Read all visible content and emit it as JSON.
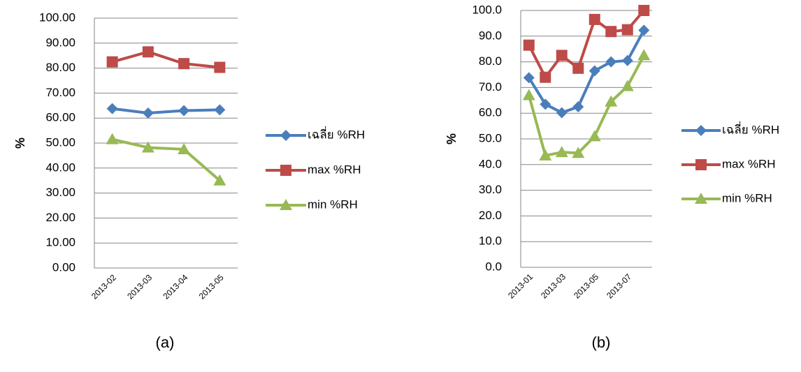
{
  "chart_data": [
    {
      "type": "line",
      "title": "(a)",
      "ylabel": "%",
      "grid": true,
      "categories": [
        "2013-02",
        "2013-03",
        "2013-04",
        "2013-05"
      ],
      "ylim": [
        0,
        100
      ],
      "yticks": [
        {
          "value": 0,
          "label": "0.00"
        },
        {
          "value": 10,
          "label": "10.00"
        },
        {
          "value": 20,
          "label": "20.00"
        },
        {
          "value": 30,
          "label": "30.00"
        },
        {
          "value": 40,
          "label": "40.00"
        },
        {
          "value": 50,
          "label": "50.00"
        },
        {
          "value": 60,
          "label": "60.00"
        },
        {
          "value": 70,
          "label": "70.00"
        },
        {
          "value": 80,
          "label": "80.00"
        },
        {
          "value": 90,
          "label": "90.00"
        },
        {
          "value": 100,
          "label": "100.00"
        }
      ],
      "series": [
        {
          "name": "เฉลี่ย %RH",
          "color": "#4a7ebb",
          "marker": "diamond",
          "values": [
            63.8,
            62.0,
            63.0,
            63.3
          ]
        },
        {
          "name": "max %RH",
          "color": "#be4b48",
          "marker": "square",
          "values": [
            82.5,
            86.5,
            81.8,
            80.3
          ]
        },
        {
          "name": "min %RH",
          "color": "#98b954",
          "marker": "triangle",
          "values": [
            51.5,
            48.2,
            47.5,
            35.0
          ]
        }
      ]
    },
    {
      "type": "line",
      "title": "(b)",
      "ylabel": "%",
      "grid": true,
      "categories": [
        "2013-01",
        null,
        "2013-03",
        null,
        "2013-05",
        null,
        "2013-07",
        null
      ],
      "ylim": [
        0,
        100
      ],
      "yticks": [
        {
          "value": 0,
          "label": "0.0"
        },
        {
          "value": 10,
          "label": "10.0"
        },
        {
          "value": 20,
          "label": "20.0"
        },
        {
          "value": 30,
          "label": "30.0"
        },
        {
          "value": 40,
          "label": "40.0"
        },
        {
          "value": 50,
          "label": "50.0"
        },
        {
          "value": 60,
          "label": "60.0"
        },
        {
          "value": 70,
          "label": "70.0"
        },
        {
          "value": 80,
          "label": "80.0"
        },
        {
          "value": 90,
          "label": "90.0"
        },
        {
          "value": 100,
          "label": "100.0"
        }
      ],
      "series": [
        {
          "name": "เฉลี่ย %RH",
          "color": "#4a7ebb",
          "marker": "diamond",
          "values": [
            73.8,
            63.5,
            60.2,
            62.5,
            76.5,
            80.0,
            80.5,
            92.3
          ]
        },
        {
          "name": "max %RH",
          "color": "#be4b48",
          "marker": "square",
          "values": [
            86.5,
            74.0,
            82.5,
            77.5,
            96.5,
            91.8,
            92.5,
            100.0
          ]
        },
        {
          "name": "min %RH",
          "color": "#98b954",
          "marker": "triangle",
          "values": [
            67.0,
            43.5,
            44.8,
            44.5,
            51.0,
            64.5,
            70.5,
            82.5
          ]
        }
      ]
    }
  ]
}
